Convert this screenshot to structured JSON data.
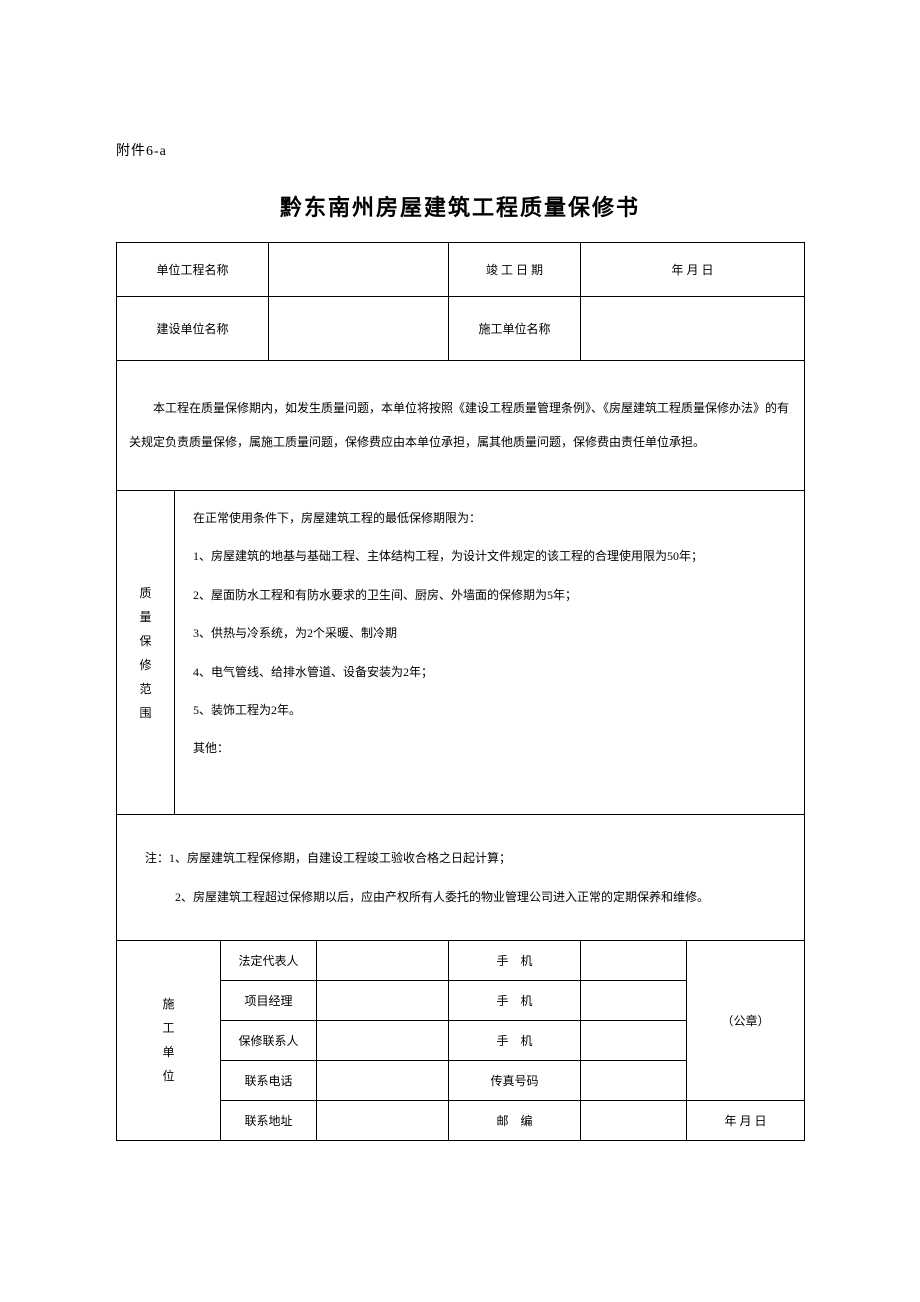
{
  "attachment": "附件6-a",
  "title": "黔东南州房屋建筑工程质量保修书",
  "header": {
    "project_name_label": "单位工程名称",
    "project_name_value": "",
    "completion_date_label": "竣 工 日 期",
    "completion_date_value": "年  月  日",
    "construction_unit_label": "建设单位名称",
    "construction_unit_value": "",
    "contractor_label": "施工单位名称",
    "contractor_value": ""
  },
  "commitment": "　　本工程在质量保修期内，如发生质量问题，本单位将按照《建设工程质量管理条例》、《房屋建筑工程质量保修办法》的有关规定负责质量保修，属施工质量问题，保修费应由本单位承担，属其他质量问题，保修费由责任单位承担。",
  "scope": {
    "label": "质量保修范围",
    "intro": "在正常使用条件下，房屋建筑工程的最低保修期限为：",
    "items": [
      "1、房屋建筑的地基与基础工程、主体结构工程，为设计文件规定的该工程的合理使用限为50年；",
      "2、屋面防水工程和有防水要求的卫生间、厨房、外墙面的保修期为5年；",
      "3、供热与冷系统，为2个采暖、制冷期",
      "4、电气管线、给排水管道、设备安装为2年；",
      "5、装饰工程为2年。"
    ],
    "other": "其他："
  },
  "notes": {
    "line1": "注：1、房屋建筑工程保修期，自建设工程竣工验收合格之日起计算；",
    "line2": "2、房屋建筑工程超过保修期以后，应由产权所有人委托的物业管理公司进入正常的定期保养和维修。"
  },
  "contact": {
    "unit_label": "施工单位",
    "rows": [
      {
        "left": "法定代表人",
        "mid": "手　机",
        "val1": "",
        "val2": ""
      },
      {
        "left": "项目经理",
        "mid": "手　机",
        "val1": "",
        "val2": ""
      },
      {
        "left": "保修联系人",
        "mid": "手　机",
        "val1": "",
        "val2": ""
      },
      {
        "left": "联系电话",
        "mid": "传真号码",
        "val1": "",
        "val2": ""
      },
      {
        "left": "联系地址",
        "mid": "邮　编",
        "val1": "",
        "val2": ""
      }
    ],
    "seal": "（公章）",
    "date": "年  月  日"
  },
  "style": {
    "border_color": "#000000",
    "background": "#ffffff",
    "font_family": "SimSun",
    "title_fontsize": 22,
    "body_fontsize": 12
  }
}
